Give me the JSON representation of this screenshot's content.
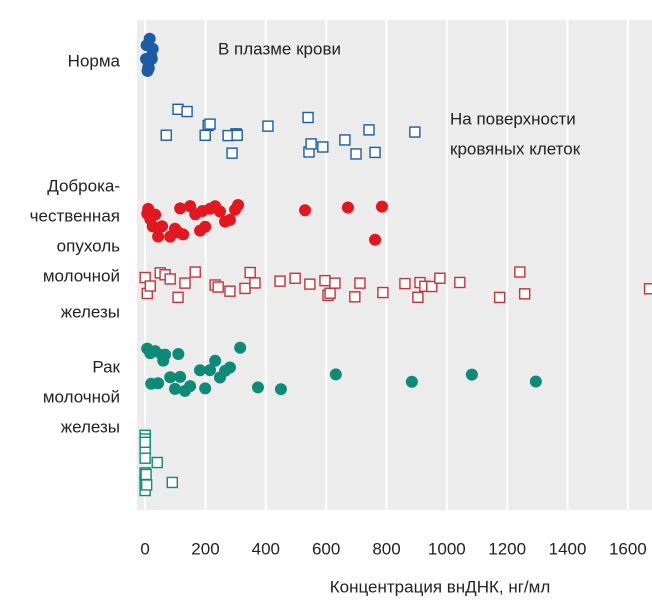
{
  "chart_data": {
    "type": "scatter",
    "xlabel": "Концентрация внДНК, нг/мл",
    "xlim": [
      -27,
      1680
    ],
    "xticks": [
      0,
      200,
      400,
      600,
      800,
      1000,
      1200,
      1400,
      1600
    ],
    "grid": true,
    "annotations": [
      [
        "В плазме крови"
      ],
      [
        "На поверхности",
        "кровяных клеток"
      ]
    ],
    "groups": [
      {
        "label": [
          "Норма"
        ],
        "plasma": {
          "color": "#1c5ba6",
          "values": [
            5,
            10,
            15,
            20,
            25,
            8,
            12,
            18,
            3,
            22,
            15,
            10
          ]
        },
        "cells": {
          "color": "#1c5ba6",
          "values": [
            109,
            139,
            209,
            215,
            288,
            301,
            199,
            70,
            275,
            305,
            407,
            543,
            589,
            540,
            550,
            662,
            699,
            742,
            762,
            894
          ]
        }
      },
      {
        "label": [
          "Доброка-",
          "чественная",
          "опухоль",
          "молочной",
          "железы"
        ],
        "plasma": {
          "color": "#e3171f",
          "values": [
            7,
            17,
            33,
            43,
            56,
            83,
            99,
            116,
            126,
            149,
            166,
            182,
            199,
            215,
            232,
            248,
            265,
            281,
            298,
            308,
            10,
            25,
            110,
            190,
            530,
            672,
            762,
            785
          ]
        },
        "cells": {
          "color": "#c0343a",
          "values": [
            0,
            7,
            17,
            50,
            66,
            83,
            109,
            132,
            166,
            232,
            242,
            281,
            331,
            348,
            364,
            447,
            497,
            546,
            596,
            606,
            613,
            629,
            695,
            712,
            788,
            861,
            904,
            911,
            927,
            950,
            977,
            1043,
            1175,
            1242,
            1258,
            1672
          ]
        }
      },
      {
        "label": [
          "Рак",
          "молочной",
          "железы"
        ],
        "plasma": {
          "color": "#0d8a78",
          "values": [
            7,
            17,
            33,
            43,
            56,
            66,
            83,
            99,
            116,
            132,
            149,
            182,
            199,
            215,
            232,
            248,
            265,
            281,
            315,
            374,
            450,
            632,
            884,
            1083,
            1295,
            20,
            60,
            110
          ]
        },
        "cells": {
          "color": "#0d8a78",
          "values": [
            0,
            0,
            0,
            0,
            0,
            0,
            0,
            0,
            0,
            0,
            0,
            0,
            3,
            5,
            40,
            90
          ]
        }
      }
    ]
  }
}
